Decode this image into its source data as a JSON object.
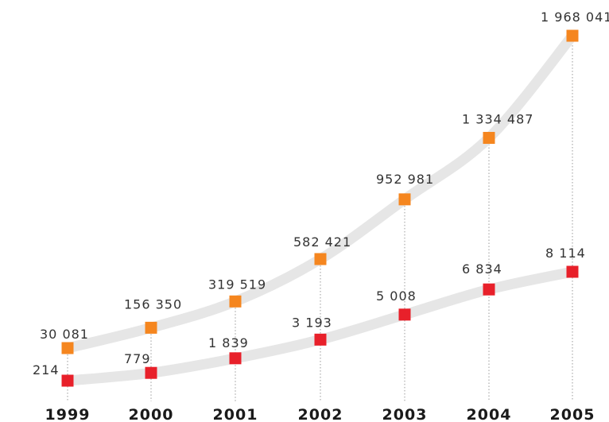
{
  "chart_data": {
    "type": "line",
    "categories": [
      "1999",
      "2000",
      "2001",
      "2002",
      "2003",
      "2004",
      "2005"
    ],
    "series": [
      {
        "values": [
          30081,
          156350,
          319519,
          582421,
          952981,
          1334487,
          1968041
        ],
        "labels": [
          "30  081",
          "156 350",
          "319  519",
          "582 421",
          "952  981",
          "1 334  487",
          "1 968 041"
        ],
        "color": "#f5861f"
      },
      {
        "values": [
          214,
          779,
          1839,
          3193,
          5008,
          6834,
          8114
        ],
        "labels": [
          "214",
          "779",
          "1 839",
          "3  193",
          "5  008",
          "6  834",
          "8 114"
        ],
        "color": "#e8202a"
      }
    ],
    "line_color": "#e6e6e6",
    "guide_color": "#9a9a9a",
    "grid": false,
    "legend": "none"
  }
}
